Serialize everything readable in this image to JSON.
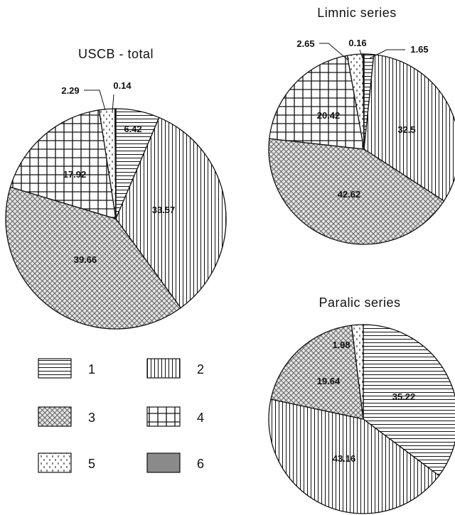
{
  "legend": [
    {
      "key": "1",
      "pattern": "hlines"
    },
    {
      "key": "2",
      "pattern": "vlines"
    },
    {
      "key": "3",
      "pattern": "crosshatch"
    },
    {
      "key": "4",
      "pattern": "grid"
    },
    {
      "key": "5",
      "pattern": "dashes"
    },
    {
      "key": "6",
      "pattern": "solid-gray"
    }
  ],
  "chart_data": [
    {
      "type": "pie",
      "title": "USCB - total",
      "slices": [
        {
          "category": "1",
          "value": 6.42,
          "label": "6.42"
        },
        {
          "category": "2",
          "value": 33.57,
          "label": "33.57"
        },
        {
          "category": "3",
          "value": 39.66,
          "label": "39.66"
        },
        {
          "category": "4",
          "value": 17.92,
          "label": "17.92"
        },
        {
          "category": "5",
          "value": 2.29,
          "label": "2.29"
        },
        {
          "category": "6",
          "value": 0.14,
          "label": "0.14"
        }
      ]
    },
    {
      "type": "pie",
      "title": "Limnic series",
      "slices": [
        {
          "category": "1",
          "value": 1.65,
          "label": "1.65"
        },
        {
          "category": "2",
          "value": 32.5,
          "label": "32.5"
        },
        {
          "category": "3",
          "value": 42.62,
          "label": "42.62"
        },
        {
          "category": "4",
          "value": 20.42,
          "label": "20.42"
        },
        {
          "category": "5",
          "value": 2.65,
          "label": "2.65"
        },
        {
          "category": "6",
          "value": 0.16,
          "label": "0.16"
        }
      ]
    },
    {
      "type": "pie",
      "title": "Paralic series",
      "slices": [
        {
          "category": "1",
          "value": 35.22,
          "label": "35.22"
        },
        {
          "category": "2",
          "value": 43.16,
          "label": "43.16"
        },
        {
          "category": "3",
          "value": 19.64,
          "label": "19.64"
        },
        {
          "category": "5",
          "value": 1.98,
          "label": "1.98"
        }
      ]
    }
  ],
  "colors": {
    "ink": "#111111",
    "background": "#ffffff",
    "fill6": "#8a8a8a"
  }
}
